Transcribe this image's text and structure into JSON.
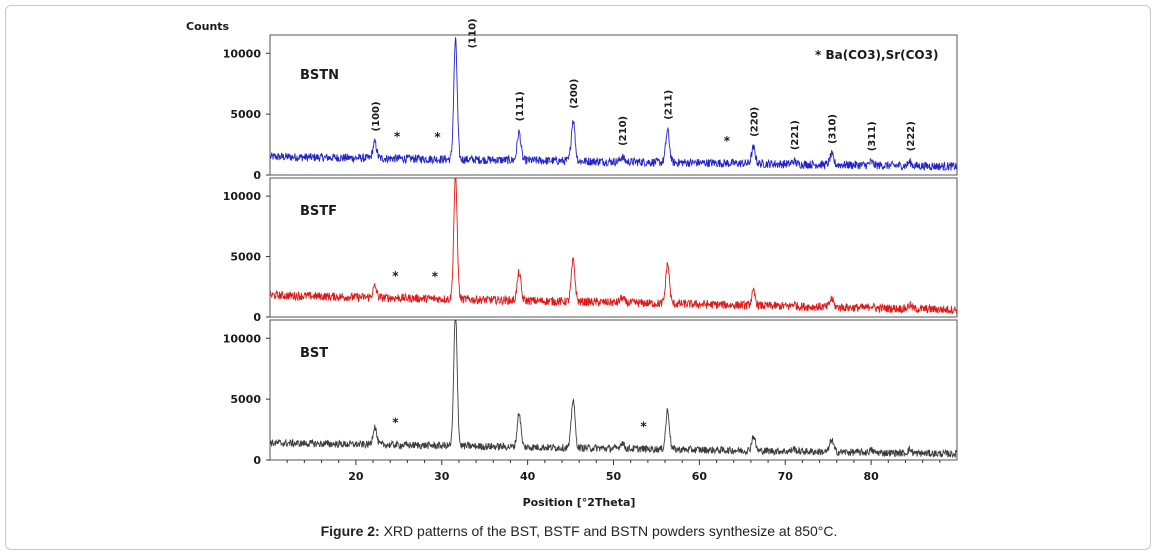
{
  "figure": {
    "caption_label": "Figure 2:",
    "caption_text": " XRD patterns of the BST, BSTF and BSTN powders synthesize at 850°C."
  },
  "chart_data": {
    "type": "line",
    "ylabel": "Counts",
    "xlabel": "Position [°2Theta]",
    "xlim": [
      10,
      90
    ],
    "ylim": [
      0,
      11500
    ],
    "x_ticks": [
      20,
      30,
      40,
      50,
      60,
      70,
      80
    ],
    "y_ticks": [
      0,
      5000,
      10000
    ],
    "legend_note": "* Ba(CO3),Sr(CO3)",
    "peaks": [
      {
        "pos": 22.2,
        "hkl": "(100)"
      },
      {
        "pos": 31.6,
        "hkl": "(110)"
      },
      {
        "pos": 39.0,
        "hkl": "(111)"
      },
      {
        "pos": 45.3,
        "hkl": "(200)"
      },
      {
        "pos": 51.0,
        "hkl": "(210)"
      },
      {
        "pos": 56.3,
        "hkl": "(211)"
      },
      {
        "pos": 66.3,
        "hkl": "(220)"
      },
      {
        "pos": 71.0,
        "hkl": "(221)"
      },
      {
        "pos": 75.4,
        "hkl": "(310)"
      },
      {
        "pos": 80.0,
        "hkl": "(311)"
      },
      {
        "pos": 84.5,
        "hkl": "(222)"
      }
    ],
    "series": [
      {
        "name": "BSTN",
        "color": "#2323c8",
        "baseline_start": 1500,
        "baseline_end": 700,
        "noise": 350,
        "peaks": [
          {
            "pos": 22.2,
            "height": 1300
          },
          {
            "pos": 31.6,
            "height": 9800
          },
          {
            "pos": 39.0,
            "height": 2300
          },
          {
            "pos": 45.3,
            "height": 3400
          },
          {
            "pos": 51.0,
            "height": 400
          },
          {
            "pos": 56.3,
            "height": 2600
          },
          {
            "pos": 66.3,
            "height": 1300
          },
          {
            "pos": 71.0,
            "height": 250
          },
          {
            "pos": 75.4,
            "height": 800
          },
          {
            "pos": 80.0,
            "height": 250
          },
          {
            "pos": 84.5,
            "height": 300
          }
        ],
        "impurity_marks": [
          24.8,
          29.5,
          63.2
        ],
        "show_hkl": true
      },
      {
        "name": "BSTF",
        "color": "#e01818",
        "baseline_start": 1800,
        "baseline_end": 600,
        "noise": 350,
        "peaks": [
          {
            "pos": 22.2,
            "height": 900
          },
          {
            "pos": 31.6,
            "height": 10200
          },
          {
            "pos": 39.0,
            "height": 2300
          },
          {
            "pos": 45.3,
            "height": 3400
          },
          {
            "pos": 51.0,
            "height": 400
          },
          {
            "pos": 56.3,
            "height": 3300
          },
          {
            "pos": 66.3,
            "height": 1100
          },
          {
            "pos": 71.0,
            "height": 200
          },
          {
            "pos": 75.4,
            "height": 700
          },
          {
            "pos": 80.0,
            "height": 200
          },
          {
            "pos": 84.5,
            "height": 300
          }
        ],
        "impurity_marks": [
          24.6,
          29.2
        ],
        "show_hkl": false
      },
      {
        "name": "BST",
        "color": "#3c3c3c",
        "baseline_start": 1400,
        "baseline_end": 500,
        "noise": 300,
        "peaks": [
          {
            "pos": 22.2,
            "height": 1500
          },
          {
            "pos": 31.6,
            "height": 11000
          },
          {
            "pos": 39.0,
            "height": 2800
          },
          {
            "pos": 45.3,
            "height": 4000
          },
          {
            "pos": 51.0,
            "height": 500
          },
          {
            "pos": 56.3,
            "height": 3200
          },
          {
            "pos": 66.3,
            "height": 1200
          },
          {
            "pos": 71.0,
            "height": 200
          },
          {
            "pos": 75.4,
            "height": 1000
          },
          {
            "pos": 80.0,
            "height": 200
          },
          {
            "pos": 84.5,
            "height": 300
          }
        ],
        "impurity_marks": [
          24.6,
          53.5
        ],
        "show_hkl": false
      }
    ]
  }
}
